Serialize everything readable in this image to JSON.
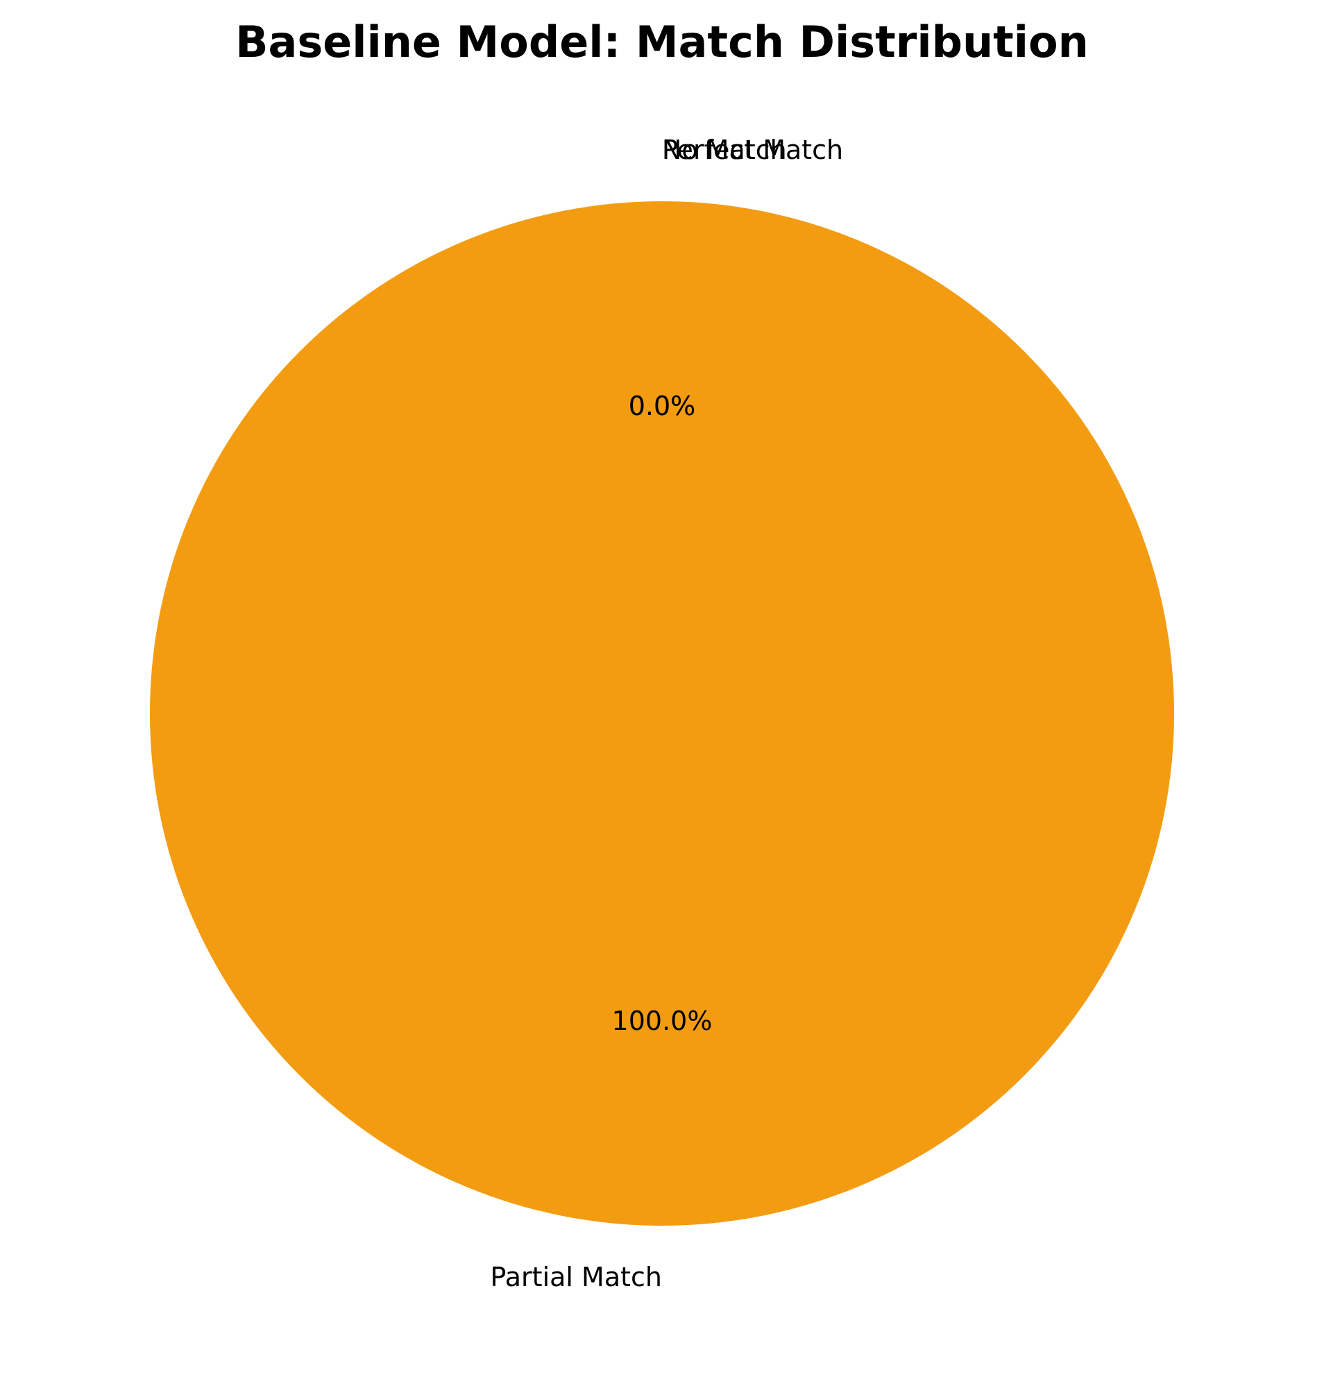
{
  "chart_data": {
    "type": "pie",
    "title": "Baseline Model: Match Distribution",
    "categories": [
      "Perfect Match",
      "Partial Match",
      "No Match"
    ],
    "values": [
      0.0,
      100.0,
      0.0
    ],
    "value_labels": [
      "0.0%",
      "100.0%",
      "0.0%"
    ],
    "colors": [
      "#2ecc71",
      "#f39c12",
      "#e74c3c"
    ],
    "start_angle_deg": 90,
    "direction": "counterclockwise",
    "legend": "none"
  }
}
